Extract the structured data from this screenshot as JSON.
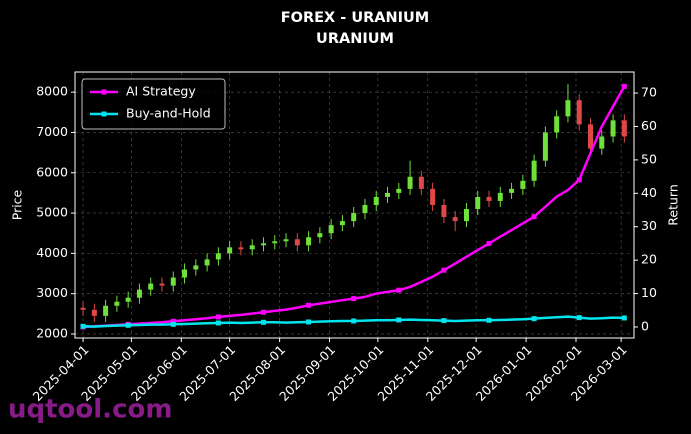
{
  "chart_data": {
    "type": "candlestick",
    "title": "FOREX - URANIUM",
    "subtitle": "URANIUM",
    "ylabel": "Price",
    "y2label": "Return",
    "watermark": "uqtool.com",
    "up_color": "#6fe03c",
    "down_color": "#e04848",
    "x": [
      "2025-04-01",
      "2025-04-08",
      "2025-04-15",
      "2025-04-22",
      "2025-04-29",
      "2025-05-06",
      "2025-05-13",
      "2025-05-20",
      "2025-05-27",
      "2025-06-03",
      "2025-06-10",
      "2025-06-17",
      "2025-06-24",
      "2025-07-01",
      "2025-07-08",
      "2025-07-15",
      "2025-07-22",
      "2025-07-29",
      "2025-08-05",
      "2025-08-12",
      "2025-08-19",
      "2025-08-26",
      "2025-09-02",
      "2025-09-09",
      "2025-09-16",
      "2025-09-23",
      "2025-09-30",
      "2025-10-07",
      "2025-10-14",
      "2025-10-21",
      "2025-10-28",
      "2025-11-04",
      "2025-11-11",
      "2025-11-18",
      "2025-11-25",
      "2025-12-02",
      "2025-12-09",
      "2025-12-16",
      "2025-12-23",
      "2025-12-30",
      "2026-01-06",
      "2026-01-13",
      "2026-01-20",
      "2026-01-27",
      "2026-02-03",
      "2026-02-10",
      "2026-02-17",
      "2026-02-24",
      "2026-03-03"
    ],
    "open": [
      2650,
      2600,
      2450,
      2700,
      2800,
      2900,
      3100,
      3250,
      3200,
      3400,
      3600,
      3700,
      3850,
      4000,
      4150,
      4100,
      4200,
      4250,
      4300,
      4350,
      4200,
      4400,
      4500,
      4700,
      4800,
      5000,
      5200,
      5400,
      5500,
      5600,
      5900,
      5600,
      5200,
      4900,
      4800,
      5100,
      5400,
      5300,
      5500,
      5600,
      5800,
      6300,
      7000,
      7400,
      7800,
      7200,
      6600,
      6900,
      7300
    ],
    "high": [
      2800,
      2750,
      2850,
      2950,
      3050,
      3250,
      3400,
      3400,
      3550,
      3750,
      3850,
      4000,
      4150,
      4300,
      4300,
      4350,
      4400,
      4450,
      4500,
      4500,
      4550,
      4650,
      4850,
      4950,
      5150,
      5350,
      5550,
      5650,
      5750,
      6300,
      6050,
      5750,
      5350,
      5050,
      5250,
      5550,
      5550,
      5650,
      5750,
      5950,
      6450,
      7150,
      7550,
      8200,
      7950,
      7350,
      7050,
      7450,
      7450
    ],
    "low": [
      2450,
      2300,
      2300,
      2550,
      2650,
      2750,
      2950,
      3050,
      3050,
      3250,
      3450,
      3550,
      3700,
      3850,
      3950,
      3950,
      4050,
      4100,
      4150,
      4050,
      4050,
      4250,
      4350,
      4550,
      4650,
      4850,
      5050,
      5250,
      5350,
      5450,
      5450,
      5050,
      4750,
      4550,
      4650,
      4950,
      5150,
      5150,
      5350,
      5450,
      5650,
      6150,
      6850,
      7250,
      7050,
      6450,
      6450,
      6750,
      6750
    ],
    "close": [
      2600,
      2450,
      2700,
      2800,
      2900,
      3100,
      3250,
      3200,
      3400,
      3600,
      3700,
      3850,
      4000,
      4150,
      4100,
      4200,
      4250,
      4300,
      4350,
      4200,
      4400,
      4500,
      4700,
      4800,
      5000,
      5200,
      5400,
      5500,
      5600,
      5900,
      5600,
      5200,
      4900,
      4800,
      5100,
      5400,
      5300,
      5500,
      5600,
      5800,
      6300,
      7000,
      7400,
      7800,
      7200,
      6600,
      6900,
      7300,
      6900
    ],
    "series": [
      {
        "name": "AI Strategy",
        "color": "#ff00ff",
        "axis": "y2",
        "values": [
          0,
          0.2,
          0.4,
          0.6,
          0.8,
          1,
          1.2,
          1.4,
          1.7,
          2,
          2.3,
          2.6,
          3,
          3.3,
          3.6,
          4,
          4.4,
          4.8,
          5.2,
          5.8,
          6.5,
          7,
          7.5,
          8,
          8.5,
          9,
          10,
          10.5,
          11,
          12,
          13.5,
          15,
          17,
          19,
          21,
          23,
          25,
          27,
          29,
          31,
          33,
          36,
          39,
          41,
          44,
          52,
          60,
          66,
          72
        ]
      },
      {
        "name": "Buy-and-Hold",
        "color": "#00e5ee",
        "axis": "y2",
        "values": [
          0.2,
          0.1,
          0.3,
          0.4,
          0.5,
          0.6,
          0.7,
          0.7,
          0.8,
          0.9,
          1,
          1.1,
          1.2,
          1.3,
          1.2,
          1.3,
          1.4,
          1.4,
          1.3,
          1.4,
          1.5,
          1.6,
          1.7,
          1.8,
          1.8,
          1.9,
          2,
          2,
          2.1,
          2.2,
          2.1,
          2,
          1.9,
          1.8,
          1.9,
          2,
          2,
          2.1,
          2.2,
          2.3,
          2.5,
          2.7,
          2.9,
          3.1,
          2.8,
          2.5,
          2.6,
          2.8,
          2.7
        ]
      }
    ],
    "xlim": [
      "2025-03-27",
      "2026-03-09"
    ],
    "xticks": [
      "2025-04-01",
      "2025-05-01",
      "2025-06-01",
      "2025-07-01",
      "2025-08-01",
      "2025-09-01",
      "2025-10-01",
      "2025-11-01",
      "2025-12-01",
      "2026-01-01",
      "2026-02-01",
      "2026-03-01"
    ],
    "ylim": [
      1900,
      8500
    ],
    "yticks": [
      2000,
      3000,
      4000,
      5000,
      6000,
      7000,
      8000
    ],
    "y2lim": [
      -3.3,
      76.3
    ],
    "y2ticks": [
      0,
      10,
      20,
      30,
      40,
      50,
      60,
      70
    ],
    "grid": true,
    "legend": "upper-left"
  }
}
